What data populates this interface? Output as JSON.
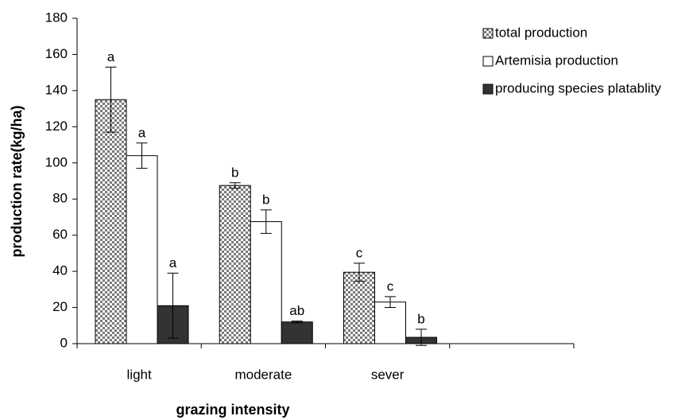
{
  "chart_data": {
    "type": "bar",
    "x_label": "grazing intensity",
    "y_label": "production rate(kg/ha)",
    "categories": [
      "light",
      "moderate",
      "sever",
      null
    ],
    "series": [
      {
        "name": "total production",
        "color": "#7a7a7a",
        "pattern": "checker",
        "values": [
          135,
          87.5,
          39.5,
          null
        ],
        "errors": [
          18,
          1.5,
          5,
          null
        ],
        "letters": [
          "a",
          "b",
          "c",
          null
        ]
      },
      {
        "name": "Artemisia production",
        "color": "#ffffff",
        "values": [
          104,
          67.5,
          23,
          null
        ],
        "errors": [
          7,
          6.5,
          3,
          null
        ],
        "letters": [
          "a",
          "b",
          "c",
          null
        ]
      },
      {
        "name": "producing species platablity",
        "color": "#333333",
        "values": [
          21,
          12,
          3.5,
          null
        ],
        "errors": [
          18,
          0.5,
          4.5,
          null
        ],
        "letters": [
          "a",
          "ab",
          "b",
          null
        ]
      }
    ],
    "ylim": [
      0,
      180
    ],
    "yticks": [
      0,
      20,
      40,
      60,
      80,
      100,
      120,
      140,
      160,
      180
    ],
    "grid": false,
    "legend": "top-right"
  }
}
